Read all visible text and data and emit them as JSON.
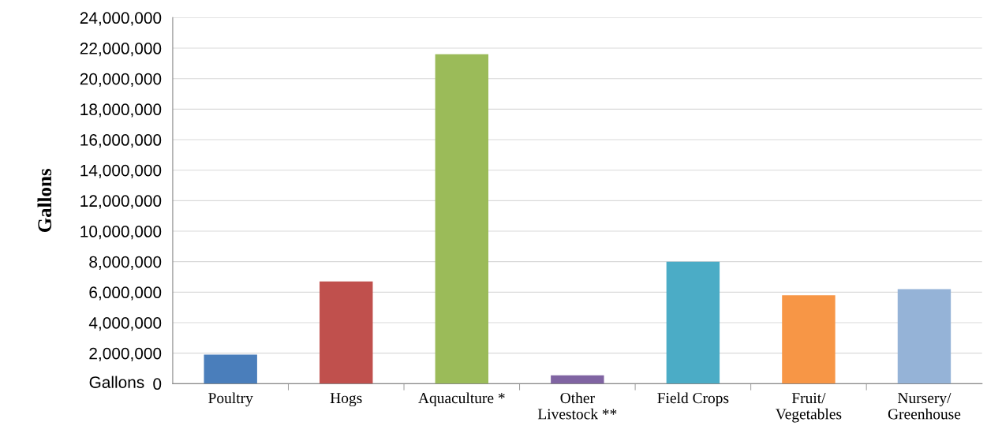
{
  "chart_data": {
    "type": "bar",
    "ylabel": "Gallons",
    "categories": [
      "Poultry",
      "Hogs",
      "Aquaculture *",
      "Other\nLivestock **",
      "Field Crops",
      "Fruit/\nVegetables",
      "Nursery/\nGreenhouse"
    ],
    "values": [
      1900000,
      6700000,
      21600000,
      550000,
      8000000,
      5800000,
      6200000
    ],
    "colors": [
      "#4a7ebb",
      "#c0504d",
      "#9bbb59",
      "#8064a2",
      "#4bacc6",
      "#f79646",
      "#95b3d7"
    ],
    "ylim": [
      0,
      24000000
    ],
    "yticks": [
      {
        "value": 0,
        "label": "0"
      },
      {
        "value": 2000000,
        "label": "2,000,000"
      },
      {
        "value": 4000000,
        "label": "4,000,000"
      },
      {
        "value": 6000000,
        "label": "6,000,000"
      },
      {
        "value": 8000000,
        "label": "8,000,000"
      },
      {
        "value": 10000000,
        "label": "10,000,000"
      },
      {
        "value": 12000000,
        "label": "12,000,000"
      },
      {
        "value": 14000000,
        "label": "14,000,000"
      },
      {
        "value": 16000000,
        "label": "16,000,000"
      },
      {
        "value": 18000000,
        "label": "18,000,000"
      },
      {
        "value": 20000000,
        "label": "20,000,000"
      },
      {
        "value": 22000000,
        "label": "22,000,000"
      },
      {
        "value": 24000000,
        "label": "24,000,000"
      }
    ],
    "annotations": [
      "Gallons"
    ],
    "grid": "y",
    "legend": false
  }
}
